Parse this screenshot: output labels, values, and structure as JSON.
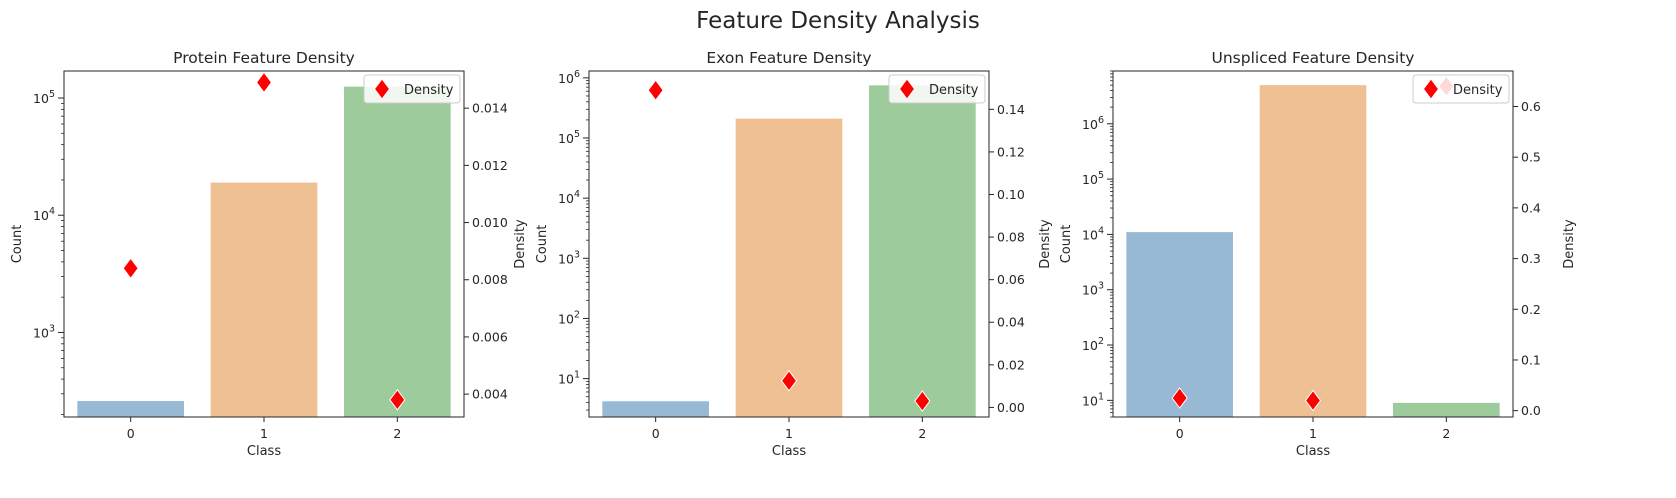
{
  "figure": {
    "suptitle": "Feature Density Analysis"
  },
  "colors": {
    "bars": [
      "#98b9d4",
      "#f0c095",
      "#9ecb9c"
    ],
    "marker": "#ff0000",
    "marker_edge": "#ffffff",
    "axis": "#262626"
  },
  "chart_data": [
    {
      "type": "bar",
      "title": "Protein Feature Density",
      "xlabel": "Class",
      "ylabel": "Count",
      "y2label": "Density",
      "categories": [
        "0",
        "1",
        "2"
      ],
      "yscale": "log",
      "ylim": [
        190,
        170000
      ],
      "y_ticks": [
        {
          "value": 1000,
          "label": "10",
          "exp": "3"
        },
        {
          "value": 10000,
          "label": "10",
          "exp": "4"
        },
        {
          "value": 100000,
          "label": "10",
          "exp": "5"
        }
      ],
      "series": [
        {
          "kind": "bar",
          "values": [
            260,
            19000,
            125000
          ]
        },
        {
          "kind": "scatter",
          "axis": "y2",
          "marker": "diamond",
          "values": [
            0.0084,
            0.0149,
            0.0038
          ]
        }
      ],
      "y2lim": [
        0.0032,
        0.0153
      ],
      "y2_ticks": [
        "0.004",
        "0.006",
        "0.008",
        "0.010",
        "0.012",
        "0.014"
      ],
      "y2_tick_values": [
        0.004,
        0.006,
        0.008,
        0.01,
        0.012,
        0.014
      ],
      "legend": {
        "label": "Density",
        "loc": "upper right"
      },
      "grid": false
    },
    {
      "type": "bar",
      "title": "Exon Feature Density",
      "xlabel": "Class",
      "ylabel": "Count",
      "y2label": "Density",
      "categories": [
        "0",
        "1",
        "2"
      ],
      "yscale": "log",
      "ylim": [
        2.3,
        1300000
      ],
      "y_ticks": [
        {
          "value": 10,
          "label": "10",
          "exp": "1"
        },
        {
          "value": 100,
          "label": "10",
          "exp": "2"
        },
        {
          "value": 1000,
          "label": "10",
          "exp": "3"
        },
        {
          "value": 10000,
          "label": "10",
          "exp": "4"
        },
        {
          "value": 100000,
          "label": "10",
          "exp": "5"
        },
        {
          "value": 1000000,
          "label": "10",
          "exp": "6"
        }
      ],
      "series": [
        {
          "kind": "bar",
          "values": [
            4.2,
            210000,
            750000
          ]
        },
        {
          "kind": "scatter",
          "axis": "y2",
          "marker": "diamond",
          "values": [
            0.149,
            0.0125,
            0.003
          ]
        }
      ],
      "y2lim": [
        -0.0045,
        0.158
      ],
      "y2_ticks": [
        "0.00",
        "0.02",
        "0.04",
        "0.06",
        "0.08",
        "0.10",
        "0.12",
        "0.14"
      ],
      "y2_tick_values": [
        0.0,
        0.02,
        0.04,
        0.06,
        0.08,
        0.1,
        0.12,
        0.14
      ],
      "legend": {
        "label": "Density",
        "loc": "upper right"
      },
      "grid": false
    },
    {
      "type": "bar",
      "title": "Unspliced Feature Density",
      "xlabel": "Class",
      "ylabel": "Count",
      "y2label": "Density",
      "categories": [
        "0",
        "1",
        "2"
      ],
      "yscale": "log",
      "ylim": [
        5,
        9000000
      ],
      "y_ticks": [
        {
          "value": 10,
          "label": "10",
          "exp": "1"
        },
        {
          "value": 100,
          "label": "10",
          "exp": "2"
        },
        {
          "value": 1000,
          "label": "10",
          "exp": "3"
        },
        {
          "value": 10000,
          "label": "10",
          "exp": "4"
        },
        {
          "value": 100000,
          "label": "10",
          "exp": "5"
        },
        {
          "value": 1000000,
          "label": "10",
          "exp": "6"
        }
      ],
      "series": [
        {
          "kind": "bar",
          "values": [
            11000,
            5000000,
            9
          ]
        },
        {
          "kind": "scatter",
          "axis": "y2",
          "marker": "diamond",
          "values": [
            0.025,
            0.02,
            0.64
          ]
        }
      ],
      "y2lim": [
        -0.0125,
        0.67
      ],
      "y2_ticks": [
        "0.0",
        "0.1",
        "0.2",
        "0.3",
        "0.4",
        "0.5",
        "0.6"
      ],
      "y2_tick_values": [
        0.0,
        0.1,
        0.2,
        0.3,
        0.4,
        0.5,
        0.6
      ],
      "legend": {
        "label": "Density",
        "loc": "upper right"
      },
      "grid": false
    }
  ]
}
